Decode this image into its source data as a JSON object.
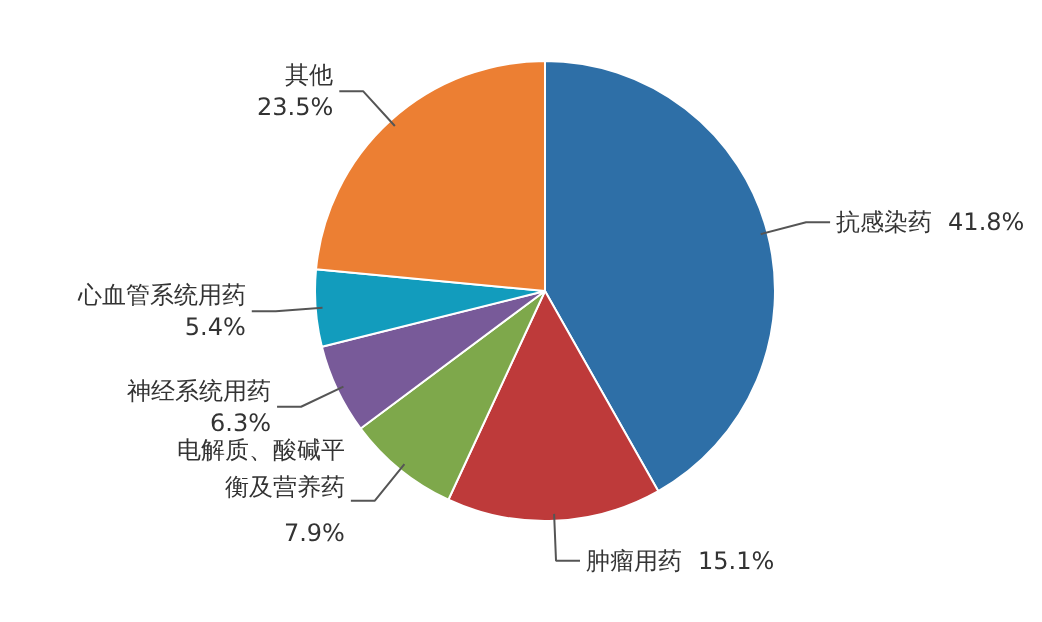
{
  "chart_data": {
    "type": "pie",
    "categories": [
      "抗感染药",
      "肿瘤用药",
      "电解质、酸碱平衡及营养药",
      "神经系统用药",
      "心血管系统用药",
      "其他"
    ],
    "values": [
      41.8,
      15.1,
      7.9,
      6.3,
      5.4,
      23.5
    ],
    "value_labels": [
      "41.8%",
      "15.1%",
      "7.9%",
      "6.3%",
      "5.4%",
      "23.5%"
    ],
    "colors": [
      "#2e6fa7",
      "#be3a3a",
      "#7ea84b",
      "#785a99",
      "#129cbd",
      "#ec7f33"
    ]
  }
}
